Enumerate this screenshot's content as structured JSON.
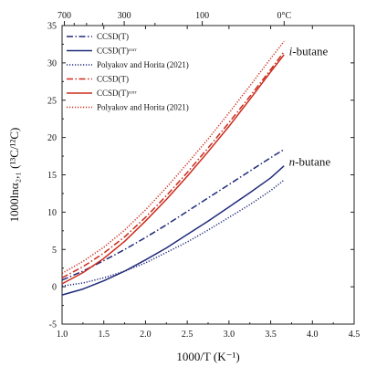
{
  "chart_data": {
    "type": "line",
    "xlabel": "1000/T (K⁻¹)",
    "ylabel": "1000lnα₂,₁ (¹³C/¹²C)",
    "xlim": [
      1.0,
      4.5
    ],
    "ylim": [
      -5,
      35
    ],
    "x_ticks": [
      "1.0",
      "1.5",
      "2.0",
      "2.5",
      "3.0",
      "3.5",
      "4.0",
      "4.5"
    ],
    "y_ticks": [
      "-5",
      "0",
      "5",
      "10",
      "15",
      "20",
      "25",
      "30",
      "35"
    ],
    "top_axis": {
      "unit": "°C",
      "ticks": [
        {
          "label": "700",
          "celsius": 700
        },
        {
          "label": "300",
          "celsius": 300
        },
        {
          "label": "100",
          "celsius": 100
        },
        {
          "label": "0°C",
          "celsius": 0
        }
      ]
    },
    "annotations": [
      {
        "text": "i-butane",
        "italic_prefix": "i",
        "rest": "-butane",
        "x": 3.72,
        "y": 31.5
      },
      {
        "text": "n-butane",
        "italic_prefix": "n",
        "rest": "-butane",
        "x": 3.72,
        "y": 16.7
      }
    ],
    "legend": {
      "placement": "top-left",
      "entries": [
        {
          "label": "CCSD(T)",
          "color": "#1f2a7a",
          "dash": "dashdot"
        },
        {
          "label": "CCSD(T)ᶜᵒʳʳ",
          "color": "#1f2a7a",
          "dash": "solid"
        },
        {
          "label": "Polyakov and Horita (2021)",
          "color": "#1f2a7a",
          "dash": "dotted"
        },
        {
          "label": "CCSD(T)",
          "color": "#cc2a1a",
          "dash": "dashdot"
        },
        {
          "label": "CCSD(T)ᶜᵒʳʳ",
          "color": "#cc2a1a",
          "dash": "solid"
        },
        {
          "label": "Polyakov and Horita (2021)",
          "color": "#cc2a1a",
          "dash": "dotted"
        }
      ]
    },
    "series": [
      {
        "group": "n-butane",
        "method": "CCSD(T)",
        "color": "#1f2a7a",
        "dash": "dashdot",
        "x": [
          1.0,
          1.25,
          1.5,
          1.75,
          2.0,
          2.25,
          2.5,
          2.75,
          3.0,
          3.25,
          3.5,
          3.66
        ],
        "y": [
          0.9,
          2.1,
          3.5,
          5.0,
          6.6,
          8.3,
          10.1,
          11.9,
          13.7,
          15.5,
          17.3,
          18.4
        ]
      },
      {
        "group": "n-butane",
        "method": "CCSD(T)corr",
        "color": "#1f2a7a",
        "dash": "solid",
        "x": [
          1.0,
          1.25,
          1.5,
          1.75,
          2.0,
          2.25,
          2.5,
          2.75,
          3.0,
          3.25,
          3.5,
          3.66
        ],
        "y": [
          -1.1,
          -0.3,
          0.8,
          2.1,
          3.6,
          5.2,
          7.0,
          8.8,
          10.7,
          12.6,
          14.6,
          16.2
        ]
      },
      {
        "group": "n-butane",
        "method": "Polyakov and Horita (2021)",
        "color": "#1f2a7a",
        "dash": "dotted",
        "x": [
          1.0,
          1.25,
          1.5,
          1.75,
          2.0,
          2.25,
          2.5,
          2.75,
          3.0,
          3.25,
          3.5,
          3.66
        ],
        "y": [
          0.1,
          0.5,
          1.2,
          2.1,
          3.2,
          4.6,
          6.0,
          7.6,
          9.3,
          11.0,
          12.9,
          14.3
        ]
      },
      {
        "group": "i-butane",
        "method": "CCSD(T)",
        "color": "#cc2a1a",
        "dash": "dashdot",
        "x": [
          1.0,
          1.25,
          1.5,
          1.75,
          2.0,
          2.25,
          2.5,
          2.75,
          3.0,
          3.25,
          3.5,
          3.66
        ],
        "y": [
          1.2,
          2.7,
          4.5,
          6.7,
          9.3,
          12.2,
          15.3,
          18.6,
          22.0,
          25.5,
          29.1,
          31.5
        ]
      },
      {
        "group": "i-butane",
        "method": "CCSD(T)corr",
        "color": "#cc2a1a",
        "dash": "solid",
        "x": [
          1.0,
          1.25,
          1.5,
          1.75,
          2.0,
          2.25,
          2.5,
          2.75,
          3.0,
          3.25,
          3.5,
          3.66
        ],
        "y": [
          0.4,
          1.9,
          3.8,
          6.1,
          8.8,
          11.7,
          14.8,
          18.1,
          21.5,
          25.1,
          28.8,
          31.1
        ]
      },
      {
        "group": "i-butane",
        "method": "Polyakov and Horita (2021)",
        "color": "#cc2a1a",
        "dash": "dotted",
        "x": [
          1.0,
          1.25,
          1.5,
          1.75,
          2.0,
          2.25,
          2.5,
          2.75,
          3.0,
          3.25,
          3.5,
          3.66
        ],
        "y": [
          1.8,
          3.4,
          5.3,
          7.6,
          10.3,
          13.3,
          16.5,
          19.8,
          23.3,
          26.9,
          30.6,
          32.9
        ]
      }
    ]
  }
}
